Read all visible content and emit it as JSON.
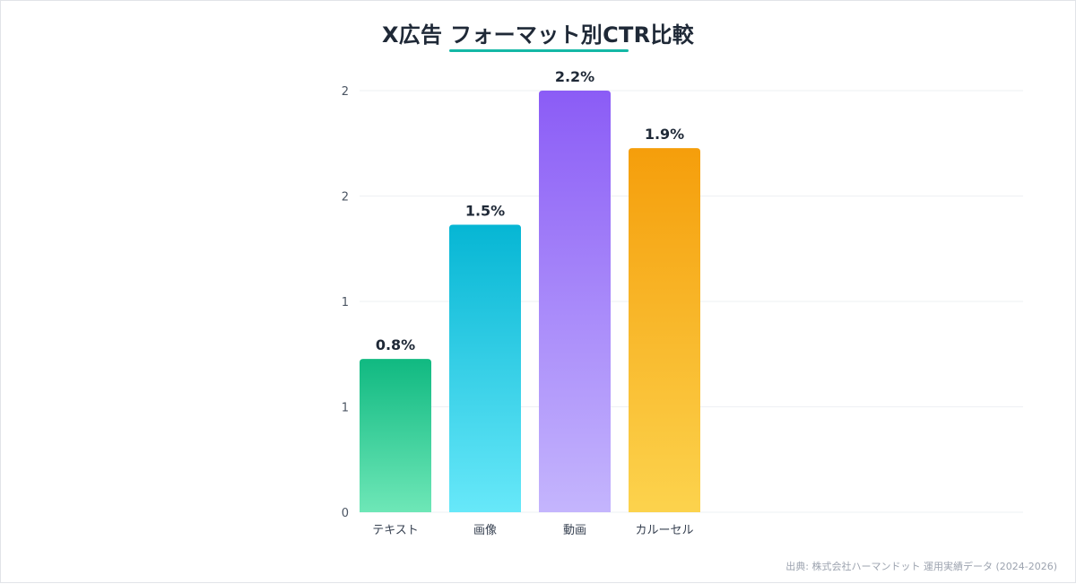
{
  "chart_data": {
    "type": "bar",
    "title": "X広告 フォーマット別CTR比較",
    "categories": [
      "テキスト",
      "画像",
      "動画",
      "カルーセル"
    ],
    "values": [
      0.8,
      1.5,
      2.2,
      1.9
    ],
    "value_labels": [
      "0.8%",
      "1.5%",
      "2.2%",
      "1.9%"
    ],
    "y_tick_labels": [
      "0",
      "1",
      "1",
      "2",
      "2"
    ],
    "ylim": [
      0,
      2
    ],
    "grid": true,
    "colors": [
      {
        "top": "#10b981",
        "bottom": "#6ee7b7"
      },
      {
        "top": "#06b6d4",
        "bottom": "#67e8f9"
      },
      {
        "top": "#8b5cf6",
        "bottom": "#c4b5fd"
      },
      {
        "top": "#f59e0b",
        "bottom": "#fcd34d"
      }
    ]
  },
  "source": "出典: 株式会社ハーマンドット 運用実績データ (2024-2026)",
  "colors": {
    "title_underline": "#14b8a6",
    "grid": "#eef0f3",
    "axis_text": "#4b5563"
  }
}
